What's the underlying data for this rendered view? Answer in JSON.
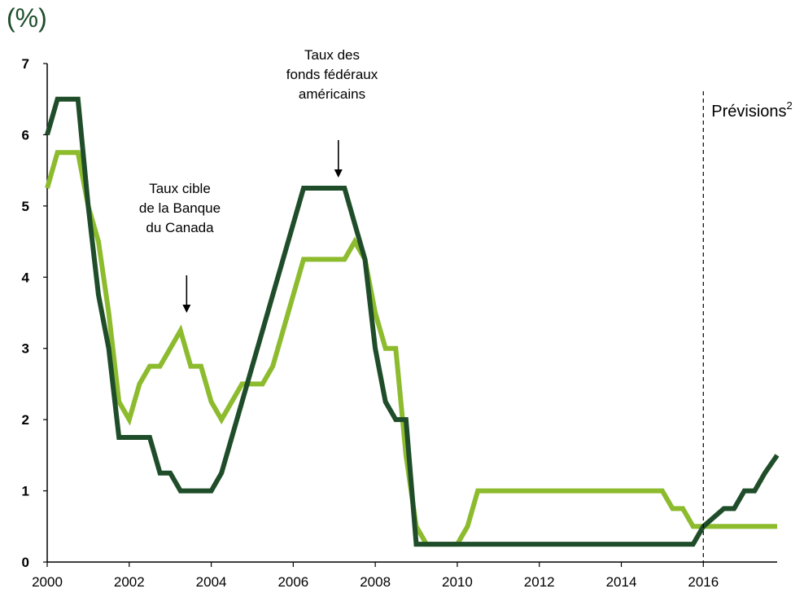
{
  "unit_label": "(%)",
  "chart_data": {
    "type": "line",
    "title": "",
    "xlabel": "",
    "ylabel": "(%)",
    "xlim": [
      2000,
      2017.8
    ],
    "ylim": [
      0,
      7
    ],
    "x_ticks": [
      "2000",
      "2002",
      "2004",
      "2006",
      "2008",
      "2010",
      "2012",
      "2014",
      "2016"
    ],
    "y_ticks": [
      "0",
      "1",
      "2",
      "3",
      "4",
      "5",
      "6",
      "7"
    ],
    "grid": false,
    "colors": {
      "fed": "#1f4d2a",
      "boc": "#8dbb2e"
    },
    "series": [
      {
        "key": "fed",
        "x": [
          2000,
          2000.25,
          2000.5,
          2000.75,
          2001.0,
          2001.25,
          2001.5,
          2001.75,
          2002.0,
          2002.5,
          2002.75,
          2003.0,
          2003.25,
          2003.5,
          2004.0,
          2004.25,
          2004.5,
          2004.75,
          2005.0,
          2005.25,
          2005.5,
          2005.75,
          2006.0,
          2006.25,
          2006.5,
          2007.0,
          2007.25,
          2007.5,
          2007.75,
          2008.0,
          2008.25,
          2008.5,
          2008.75,
          2009.0,
          2015.25,
          2015.5,
          2015.75,
          2016.0,
          2016.5,
          2016.75,
          2017.0,
          2017.25,
          2017.5,
          2017.8
        ],
        "values": [
          6.0,
          6.5,
          6.5,
          6.5,
          5.0,
          3.75,
          3.0,
          1.75,
          1.75,
          1.75,
          1.25,
          1.25,
          1.0,
          1.0,
          1.0,
          1.25,
          1.75,
          2.25,
          2.75,
          3.25,
          3.75,
          4.25,
          4.75,
          5.25,
          5.25,
          5.25,
          5.25,
          4.75,
          4.25,
          3.0,
          2.25,
          2.0,
          2.0,
          0.25,
          0.25,
          0.25,
          0.25,
          0.5,
          0.75,
          0.75,
          1.0,
          1.0,
          1.25,
          1.5
        ]
      },
      {
        "key": "boc",
        "x": [
          2000,
          2000.25,
          2000.5,
          2000.75,
          2001.0,
          2001.25,
          2001.5,
          2001.75,
          2002.0,
          2002.25,
          2002.5,
          2002.75,
          2003.0,
          2003.25,
          2003.5,
          2003.75,
          2004.0,
          2004.25,
          2004.5,
          2004.75,
          2005.0,
          2005.25,
          2005.5,
          2005.75,
          2006.0,
          2006.25,
          2006.5,
          2007.0,
          2007.25,
          2007.5,
          2007.75,
          2008.0,
          2008.25,
          2008.5,
          2008.75,
          2009.0,
          2009.25,
          2009.5,
          2010.0,
          2010.25,
          2010.5,
          2010.75,
          2014.75,
          2015.0,
          2015.25,
          2015.5,
          2015.75,
          2017.8
        ],
        "values": [
          5.25,
          5.75,
          5.75,
          5.75,
          5.0,
          4.5,
          3.5,
          2.25,
          2.0,
          2.5,
          2.75,
          2.75,
          3.0,
          3.25,
          2.75,
          2.75,
          2.25,
          2.0,
          2.25,
          2.5,
          2.5,
          2.5,
          2.75,
          3.25,
          3.75,
          4.25,
          4.25,
          4.25,
          4.25,
          4.5,
          4.25,
          3.5,
          3.0,
          3.0,
          1.5,
          0.5,
          0.25,
          0.25,
          0.25,
          0.5,
          1.0,
          1.0,
          1.0,
          1.0,
          0.75,
          0.75,
          0.5,
          0.5
        ]
      }
    ],
    "annotations": [
      {
        "key": "fed",
        "lines": [
          "Taux des",
          "fonds fédéraux",
          "américains"
        ],
        "arrow_x": 2007.1
      },
      {
        "key": "boc",
        "lines": [
          "Taux cible",
          "de la Banque",
          "du Canada"
        ],
        "arrow_x": 2003.4
      }
    ],
    "forecast": {
      "start": 2016.0,
      "label": "Prévisions",
      "footnote": "2"
    }
  }
}
